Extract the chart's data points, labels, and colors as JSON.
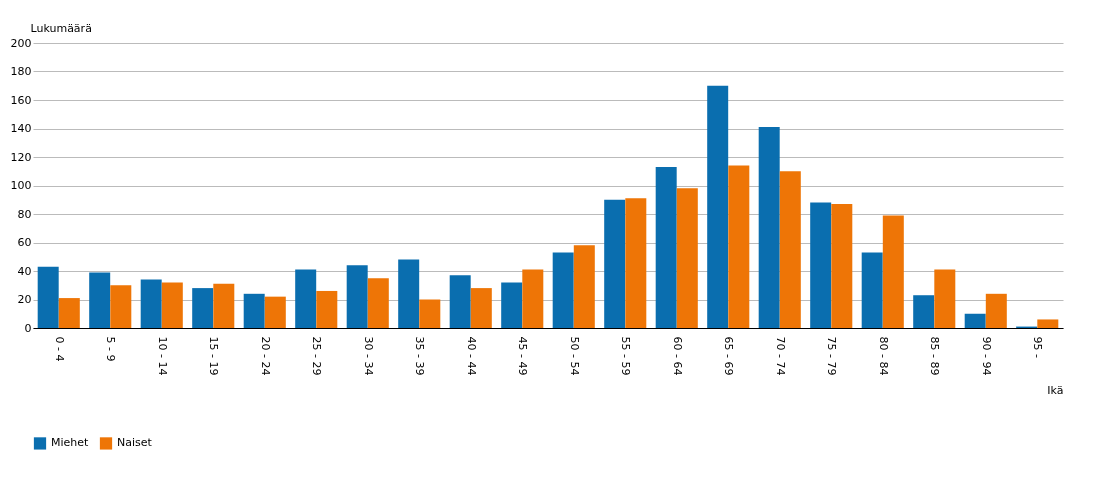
{
  "chart_data": {
    "type": "bar",
    "ylabel": "Lukumäärä",
    "xlabel": "Ikä",
    "categories": [
      "0 - 4",
      "5 - 9",
      "10 - 14",
      "15 - 19",
      "20 - 24",
      "25 - 29",
      "30 - 34",
      "35 - 39",
      "40 - 44",
      "45 - 49",
      "50 - 54",
      "55 - 59",
      "60 - 64",
      "65 - 69",
      "70 - 74",
      "75 - 79",
      "80 - 84",
      "85 - 89",
      "90 - 94",
      "95 -"
    ],
    "series": [
      {
        "name": "Miehet",
        "color": "#0a6eaf",
        "values": [
          43,
          39,
          34,
          28,
          24,
          41,
          44,
          48,
          37,
          32,
          53,
          90,
          113,
          170,
          141,
          88,
          53,
          23,
          10,
          1
        ]
      },
      {
        "name": "Naiset",
        "color": "#ee7506",
        "values": [
          21,
          30,
          32,
          31,
          22,
          26,
          35,
          20,
          28,
          41,
          58,
          91,
          98,
          114,
          110,
          87,
          79,
          41,
          24,
          6
        ]
      }
    ],
    "ylim": [
      0,
      200
    ],
    "yticks": [
      0,
      20,
      40,
      60,
      80,
      100,
      120,
      140,
      160,
      180,
      200
    ],
    "grid": "y",
    "legend": "bottom"
  }
}
